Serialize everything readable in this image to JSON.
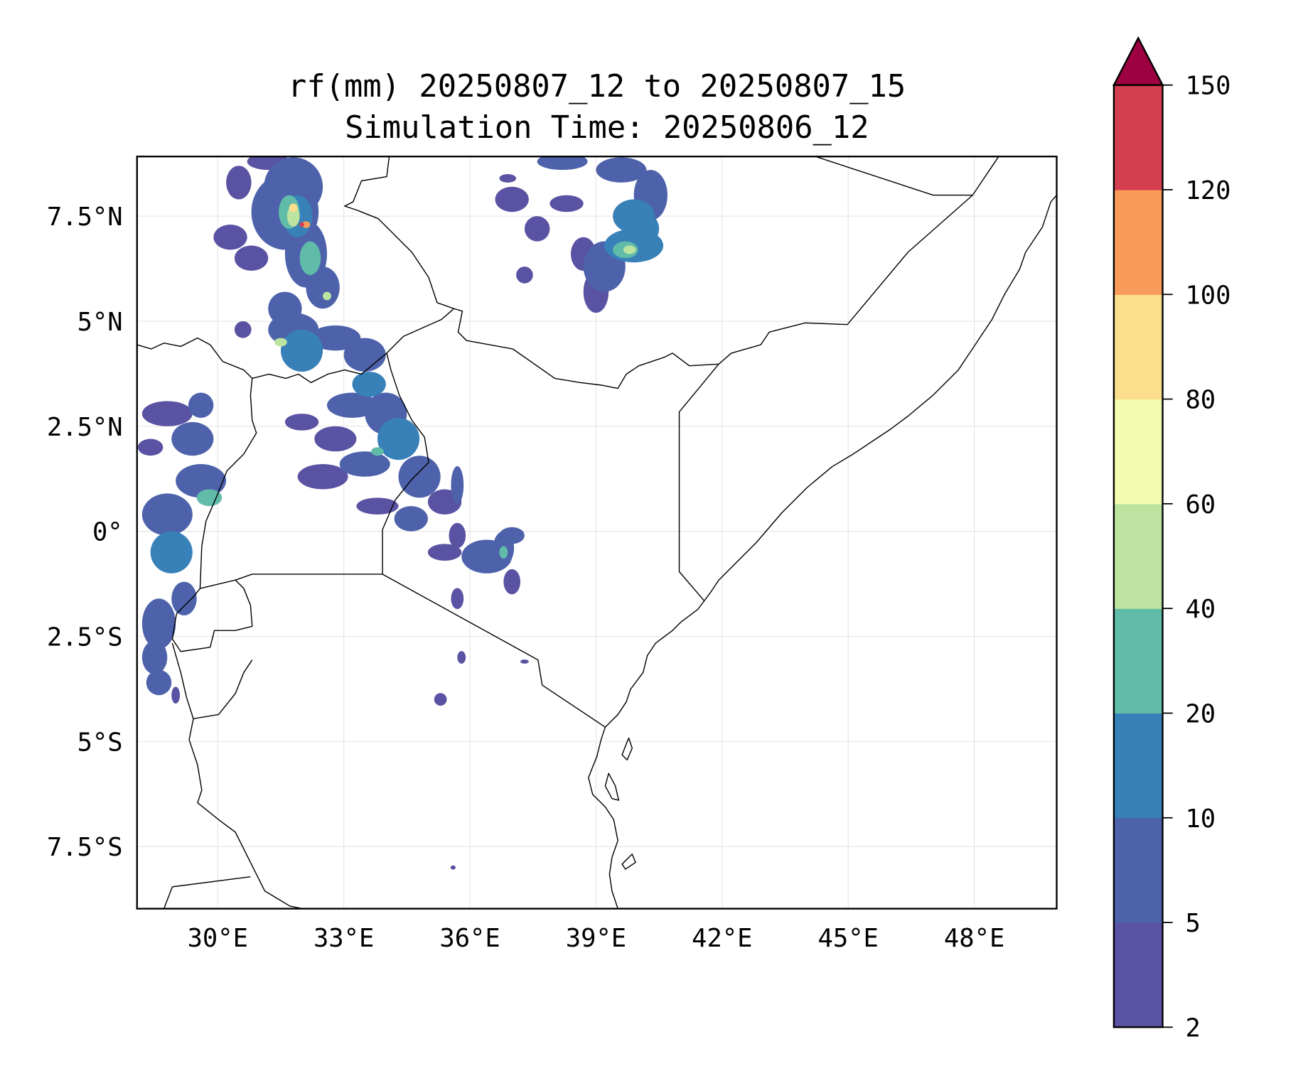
{
  "chart_data": {
    "type": "heatmap",
    "subtype": "filled-contour map",
    "title": "rf(mm) 20250807_12 to 20250807_15",
    "subtitle": "Simulation Time: 20250806_12",
    "xlim": [
      28.1,
      49.9
    ],
    "ylim": [
      -8.95,
      8.95
    ],
    "xticks": [
      30,
      33,
      36,
      39,
      42,
      45,
      48
    ],
    "xtick_labels": [
      "30°E",
      "33°E",
      "36°E",
      "39°E",
      "42°E",
      "45°E",
      "48°E"
    ],
    "yticks": [
      7.5,
      5,
      2.5,
      0,
      -2.5,
      -5,
      -7.5
    ],
    "ytick_labels": [
      "7.5°N",
      "5°N",
      "2.5°N",
      "0°",
      "2.5°S",
      "5°S",
      "7.5°S"
    ],
    "grid": true,
    "colorbar": {
      "placement": "right",
      "extend": "max",
      "levels": [
        2,
        5,
        10,
        20,
        40,
        60,
        80,
        100,
        120,
        150
      ],
      "level_labels": [
        "2",
        "5",
        "10",
        "20",
        "40",
        "60",
        "80",
        "100",
        "120",
        "150"
      ],
      "colors": [
        "#5a52a2",
        "#4d62ab",
        "#3880b8",
        "#60bba9",
        "#bde3a0",
        "#f3fbb0",
        "#fcdf8d",
        "#f99b5a",
        "#d43e50"
      ],
      "over_color": "#9e0142"
    },
    "rain_cells_fields": [
      "lon",
      "lat",
      "radius_lon_deg",
      "radius_lat_deg",
      "rain_mm"
    ],
    "rain_cells": [
      [
        31.2,
        8.8,
        0.5,
        0.2,
        4
      ],
      [
        30.5,
        8.3,
        0.3,
        0.4,
        3
      ],
      [
        31.8,
        8.2,
        0.7,
        0.7,
        8
      ],
      [
        31.6,
        7.6,
        0.8,
        0.9,
        8
      ],
      [
        30.3,
        7.0,
        0.4,
        0.3,
        3
      ],
      [
        31.9,
        7.5,
        0.35,
        0.5,
        15
      ],
      [
        31.7,
        7.6,
        0.25,
        0.4,
        30
      ],
      [
        31.8,
        7.5,
        0.15,
        0.25,
        50
      ],
      [
        31.8,
        7.7,
        0.1,
        0.1,
        90
      ],
      [
        32.1,
        7.3,
        0.1,
        0.08,
        110
      ],
      [
        32.0,
        7.3,
        0.06,
        0.05,
        130
      ],
      [
        32.1,
        6.6,
        0.5,
        0.8,
        8
      ],
      [
        32.2,
        6.5,
        0.25,
        0.4,
        20
      ],
      [
        30.8,
        6.5,
        0.4,
        0.3,
        3
      ],
      [
        32.5,
        5.8,
        0.4,
        0.5,
        8
      ],
      [
        32.6,
        5.6,
        0.1,
        0.1,
        45
      ],
      [
        31.6,
        5.3,
        0.4,
        0.4,
        6
      ],
      [
        31.8,
        4.8,
        0.6,
        0.4,
        8
      ],
      [
        32.0,
        4.3,
        0.5,
        0.5,
        12
      ],
      [
        31.5,
        4.5,
        0.15,
        0.1,
        50
      ],
      [
        32.8,
        4.6,
        0.6,
        0.3,
        5
      ],
      [
        33.5,
        4.2,
        0.5,
        0.4,
        6
      ],
      [
        30.6,
        4.8,
        0.2,
        0.2,
        3
      ],
      [
        33.6,
        3.5,
        0.4,
        0.3,
        12
      ],
      [
        33.2,
        3.0,
        0.6,
        0.3,
        6
      ],
      [
        34.0,
        2.8,
        0.5,
        0.5,
        8
      ],
      [
        34.3,
        2.2,
        0.5,
        0.5,
        12
      ],
      [
        32.8,
        2.2,
        0.5,
        0.3,
        4
      ],
      [
        32.0,
        2.6,
        0.4,
        0.2,
        4
      ],
      [
        33.5,
        1.6,
        0.6,
        0.3,
        5
      ],
      [
        34.8,
        1.3,
        0.5,
        0.5,
        6
      ],
      [
        32.5,
        1.3,
        0.6,
        0.3,
        4
      ],
      [
        35.4,
        0.7,
        0.4,
        0.3,
        4
      ],
      [
        33.8,
        0.6,
        0.5,
        0.2,
        4
      ],
      [
        34.6,
        0.3,
        0.4,
        0.3,
        5
      ],
      [
        35.7,
        -0.1,
        0.2,
        0.3,
        3
      ],
      [
        33.8,
        1.9,
        0.15,
        0.1,
        25
      ],
      [
        28.8,
        2.8,
        0.6,
        0.3,
        4
      ],
      [
        29.6,
        3.0,
        0.3,
        0.3,
        5
      ],
      [
        29.4,
        2.2,
        0.5,
        0.4,
        5
      ],
      [
        28.4,
        2.0,
        0.3,
        0.2,
        4
      ],
      [
        29.6,
        1.2,
        0.6,
        0.4,
        6
      ],
      [
        29.8,
        0.8,
        0.3,
        0.2,
        20
      ],
      [
        28.8,
        0.4,
        0.6,
        0.5,
        8
      ],
      [
        28.9,
        -0.5,
        0.5,
        0.5,
        12
      ],
      [
        28.7,
        -0.4,
        0.25,
        0.2,
        18
      ],
      [
        29.2,
        -1.6,
        0.3,
        0.4,
        6
      ],
      [
        28.6,
        -2.2,
        0.4,
        0.6,
        8
      ],
      [
        28.5,
        -3.0,
        0.3,
        0.4,
        6
      ],
      [
        28.6,
        -3.6,
        0.3,
        0.3,
        6
      ],
      [
        29.0,
        -3.9,
        0.1,
        0.2,
        3
      ],
      [
        38.2,
        8.8,
        0.6,
        0.2,
        6
      ],
      [
        39.6,
        8.6,
        0.6,
        0.3,
        8
      ],
      [
        40.3,
        8.0,
        0.4,
        0.6,
        8
      ],
      [
        39.9,
        7.5,
        0.5,
        0.4,
        10
      ],
      [
        40.1,
        7.2,
        0.4,
        0.4,
        15
      ],
      [
        39.9,
        6.8,
        0.7,
        0.4,
        10
      ],
      [
        39.7,
        6.7,
        0.3,
        0.2,
        25
      ],
      [
        39.8,
        6.7,
        0.15,
        0.1,
        45
      ],
      [
        39.2,
        6.3,
        0.5,
        0.6,
        6
      ],
      [
        39.0,
        5.7,
        0.3,
        0.5,
        4
      ],
      [
        37.0,
        7.9,
        0.4,
        0.3,
        3
      ],
      [
        37.6,
        7.2,
        0.3,
        0.3,
        3
      ],
      [
        38.3,
        7.8,
        0.4,
        0.2,
        3
      ],
      [
        38.7,
        6.6,
        0.3,
        0.4,
        4
      ],
      [
        37.3,
        6.1,
        0.2,
        0.2,
        3
      ],
      [
        36.9,
        8.4,
        0.2,
        0.1,
        3
      ],
      [
        35.7,
        1.1,
        0.15,
        0.45,
        5
      ],
      [
        36.4,
        -0.6,
        0.6,
        0.4,
        6
      ],
      [
        36.8,
        -0.4,
        0.25,
        0.4,
        8
      ],
      [
        36.8,
        -0.5,
        0.1,
        0.15,
        30
      ],
      [
        37.0,
        -0.1,
        0.3,
        0.2,
        5
      ],
      [
        35.4,
        -0.5,
        0.4,
        0.2,
        4
      ],
      [
        37.0,
        -1.2,
        0.2,
        0.3,
        4
      ],
      [
        35.7,
        -1.6,
        0.15,
        0.25,
        4
      ],
      [
        35.8,
        -3.0,
        0.1,
        0.15,
        3
      ],
      [
        35.3,
        -4.0,
        0.15,
        0.15,
        4
      ],
      [
        37.3,
        -3.1,
        0.1,
        0.05,
        3
      ],
      [
        35.6,
        -8.0,
        0.06,
        0.05,
        3
      ]
    ]
  }
}
